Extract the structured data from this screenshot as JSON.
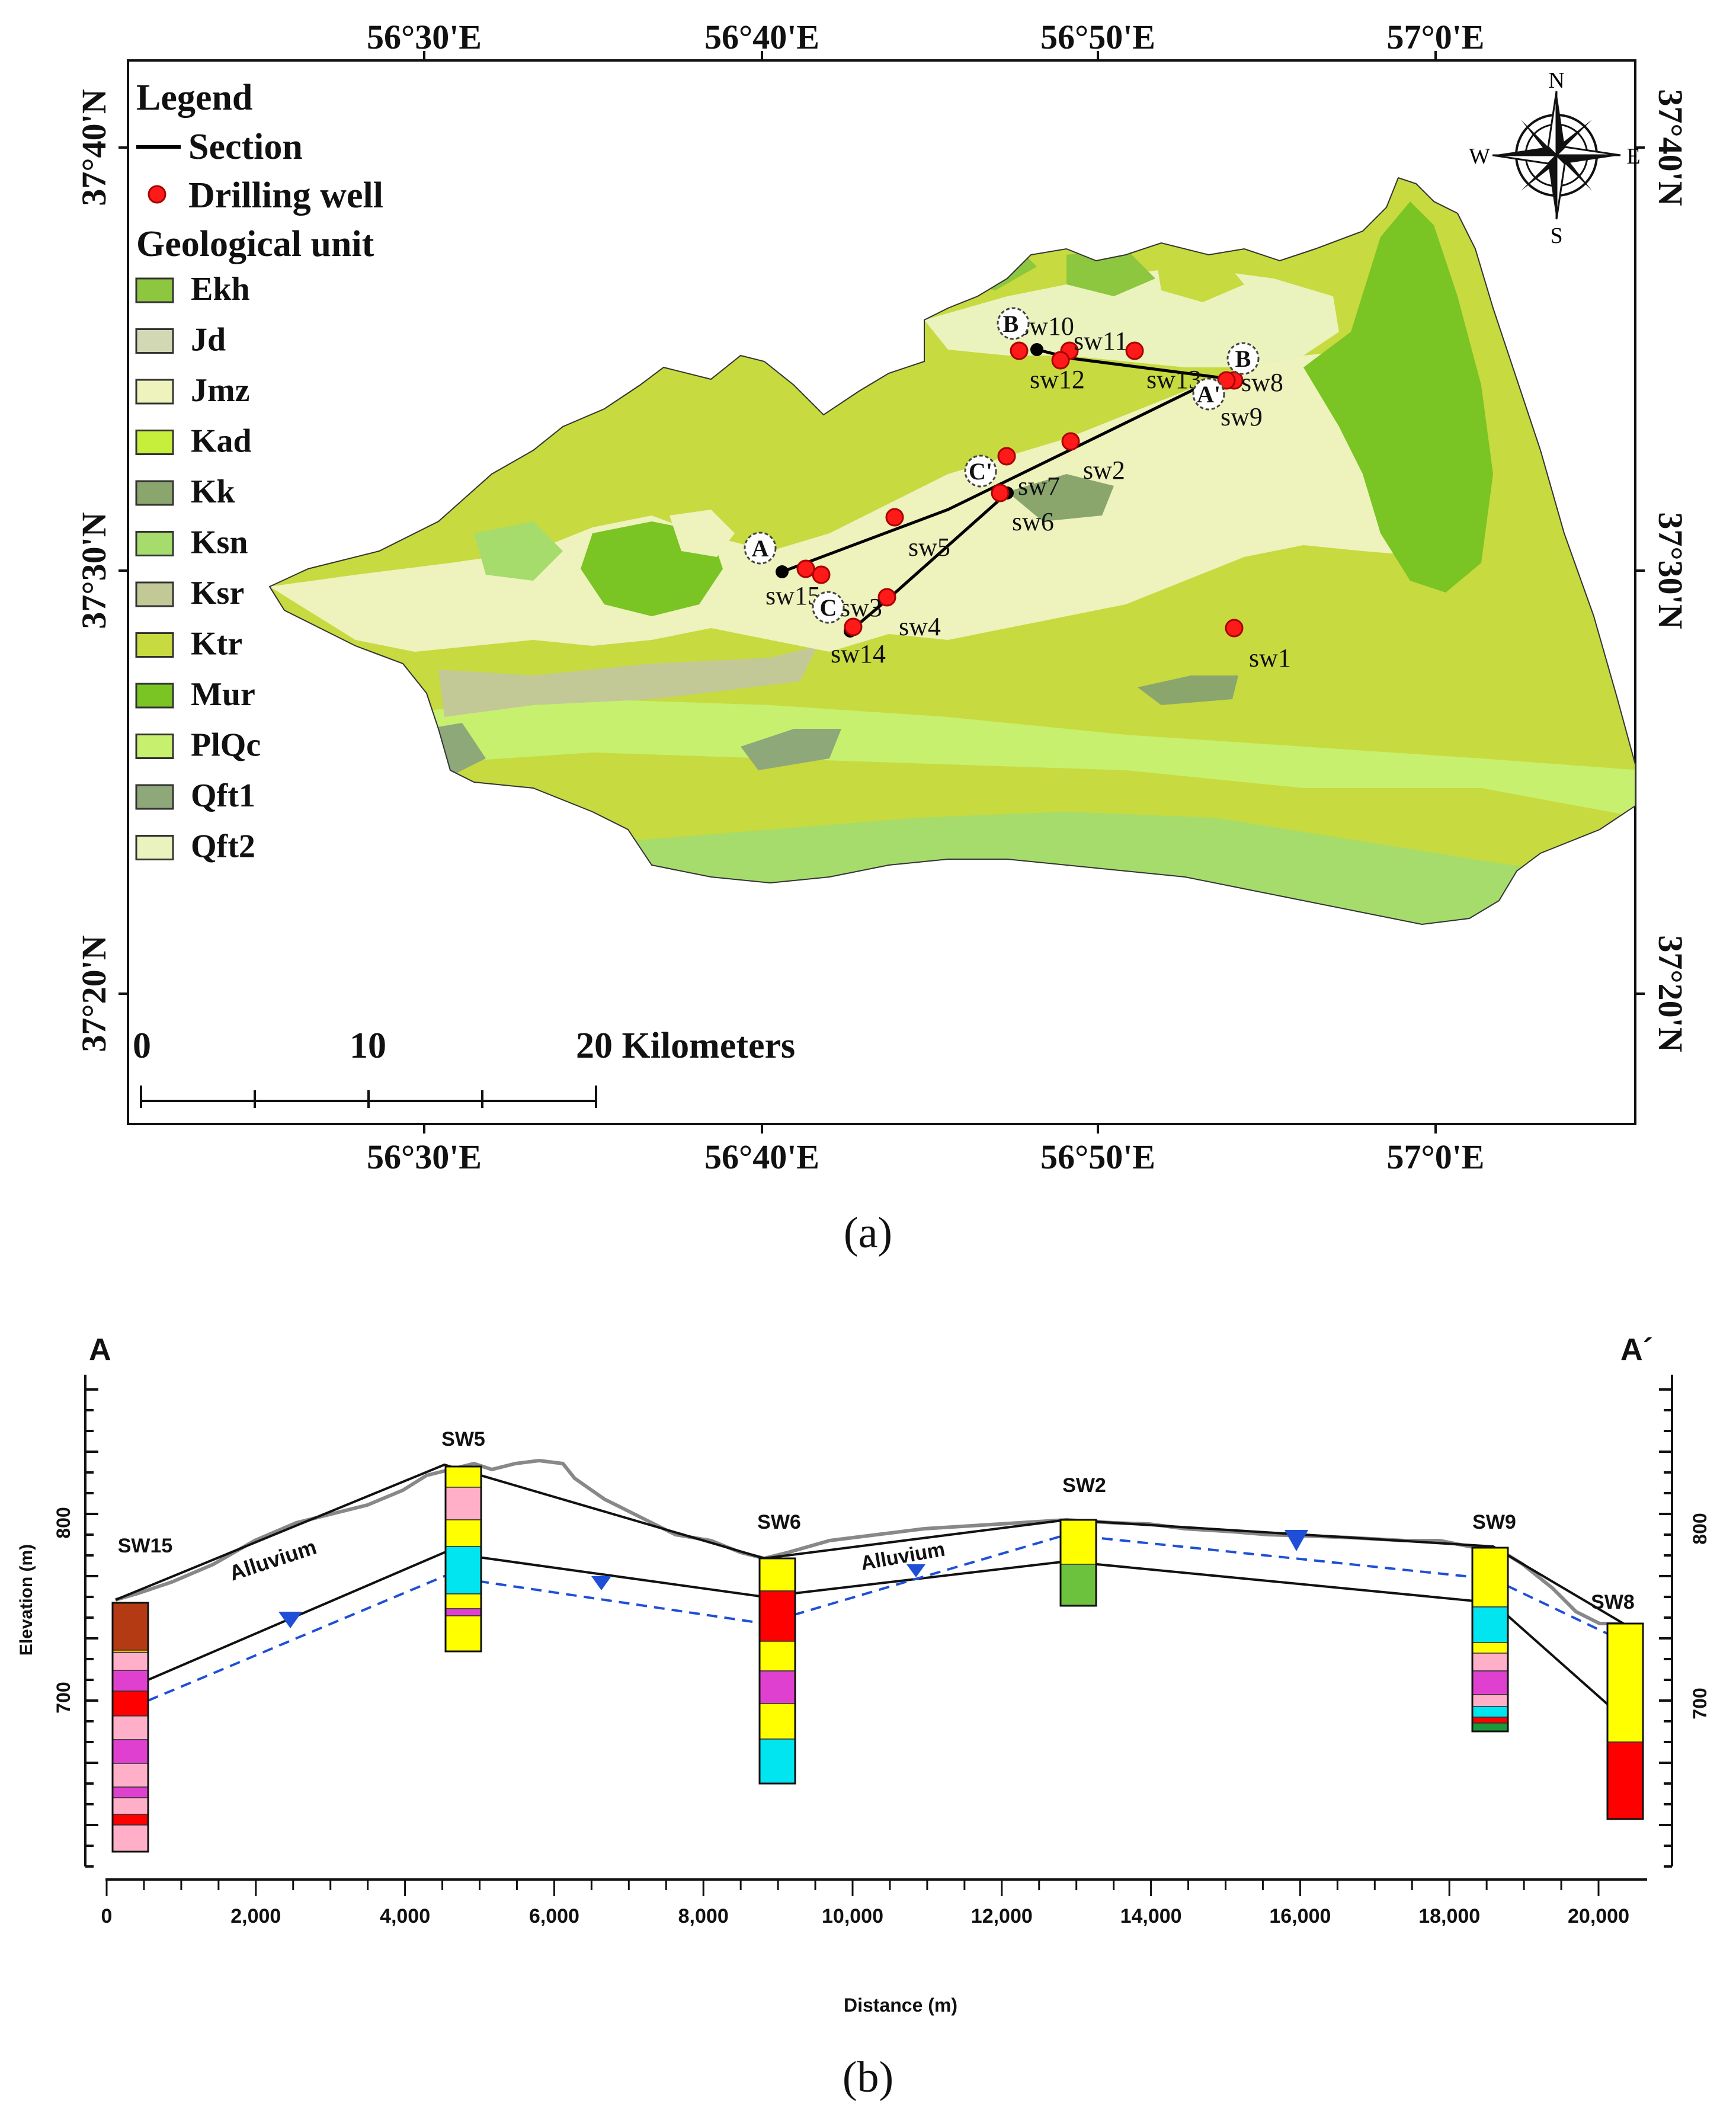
{
  "map": {
    "top_lon_labels": [
      "56°30'E",
      "56°40'E",
      "56°50'E",
      "57°0'E"
    ],
    "bottom_lon_labels": [
      "56°30'E",
      "56°40'E",
      "56°50'E",
      "57°0'E"
    ],
    "left_lat_labels": [
      "37°40'N",
      "37°30'N",
      "37°20'N"
    ],
    "right_lat_labels": [
      "37°40'N",
      "37°30'N",
      "37°20'N"
    ],
    "legend": {
      "title": "Legend",
      "section_label": "Section",
      "well_label": "Drilling well",
      "unit_title": "Geological unit",
      "units": [
        {
          "name": "Ekh",
          "color": "#8dc63f"
        },
        {
          "name": "Jd",
          "color": "#d2d8b4"
        },
        {
          "name": "Jmz",
          "color": "#eef2bd"
        },
        {
          "name": "Kad",
          "color": "#c5ef3a"
        },
        {
          "name": "Kk",
          "color": "#8aa66d"
        },
        {
          "name": "Ksn",
          "color": "#a6dc6c"
        },
        {
          "name": "Ksr",
          "color": "#c2c997"
        },
        {
          "name": "Ktr",
          "color": "#c7da3f"
        },
        {
          "name": "Mur",
          "color": "#7ac424"
        },
        {
          "name": "PlQc",
          "color": "#c7f06e"
        },
        {
          "name": "Qft1",
          "color": "#8fa87a"
        },
        {
          "name": "Qft2",
          "color": "#eaf3bd"
        }
      ]
    },
    "compass": {
      "n": "N",
      "s": "S",
      "e": "E",
      "w": "W"
    },
    "scale": {
      "labels": [
        "0",
        "10",
        "20 Kilometers"
      ]
    },
    "section_points": [
      "A",
      "A'",
      "B",
      "B",
      "C",
      "C'"
    ],
    "wells": [
      "sw1",
      "sw2",
      "sw3",
      "sw4",
      "sw5",
      "sw6",
      "sw7",
      "sw8",
      "sw9",
      "sw10",
      "sw11",
      "sw12",
      "sw13",
      "sw14",
      "sw15"
    ],
    "caption": "(a)"
  },
  "section": {
    "left_label": "A",
    "right_label": "A´",
    "ylabel": "Elevation (m)",
    "xlabel": "Distance (m)",
    "left_ticks": [
      "800",
      "700"
    ],
    "right_ticks": [
      "800",
      "700"
    ],
    "x_ticks": [
      "0",
      "2,000",
      "4,000",
      "6,000",
      "8,000",
      "10,000",
      "12,000",
      "14,000",
      "16,000",
      "18,000",
      "20,000"
    ],
    "well_names": [
      "SW15",
      "SW5",
      "SW6",
      "SW2",
      "SW9",
      "SW8"
    ],
    "alluvium_labels": [
      "Alluvium",
      "Alluvium"
    ],
    "caption": "(b)"
  }
}
